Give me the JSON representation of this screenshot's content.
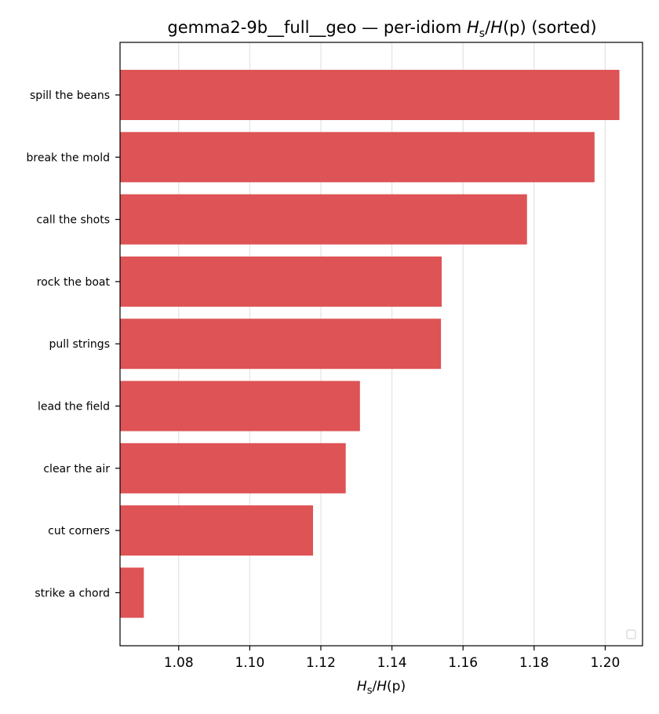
{
  "chart_data": {
    "type": "bar",
    "orientation": "horizontal",
    "title": {
      "prefix": "gemma2-9b__full__geo — per-idiom ",
      "math_num": "H",
      "math_num_sub": "s",
      "math_slash": "/",
      "math_den": "H",
      "math_den_arg": "(p)",
      "suffix": " (sorted)"
    },
    "xlabel": {
      "num": "H",
      "num_sub": "s",
      "slash": "/",
      "den": "H",
      "den_arg": "(p)"
    },
    "ylabel": "",
    "categories": [
      "spill the beans",
      "break the mold",
      "call the shots",
      "rock the boat",
      "pull strings",
      "lead the field",
      "clear the air",
      "cut corners",
      "strike a chord"
    ],
    "values": [
      1.204,
      1.197,
      1.178,
      1.154,
      1.1538,
      1.131,
      1.127,
      1.1178,
      1.0702
    ],
    "xlim": [
      1.0635,
      1.2105
    ],
    "xticks": [
      1.08,
      1.1,
      1.12,
      1.14,
      1.16,
      1.18,
      1.2
    ],
    "xtick_labels": [
      "1.08",
      "1.10",
      "1.12",
      "1.14",
      "1.16",
      "1.18",
      "1.20"
    ],
    "grid": "x",
    "legend": "lower-right (empty)",
    "bar_color": "#de5355",
    "grid_color": "#e3e3e3"
  }
}
